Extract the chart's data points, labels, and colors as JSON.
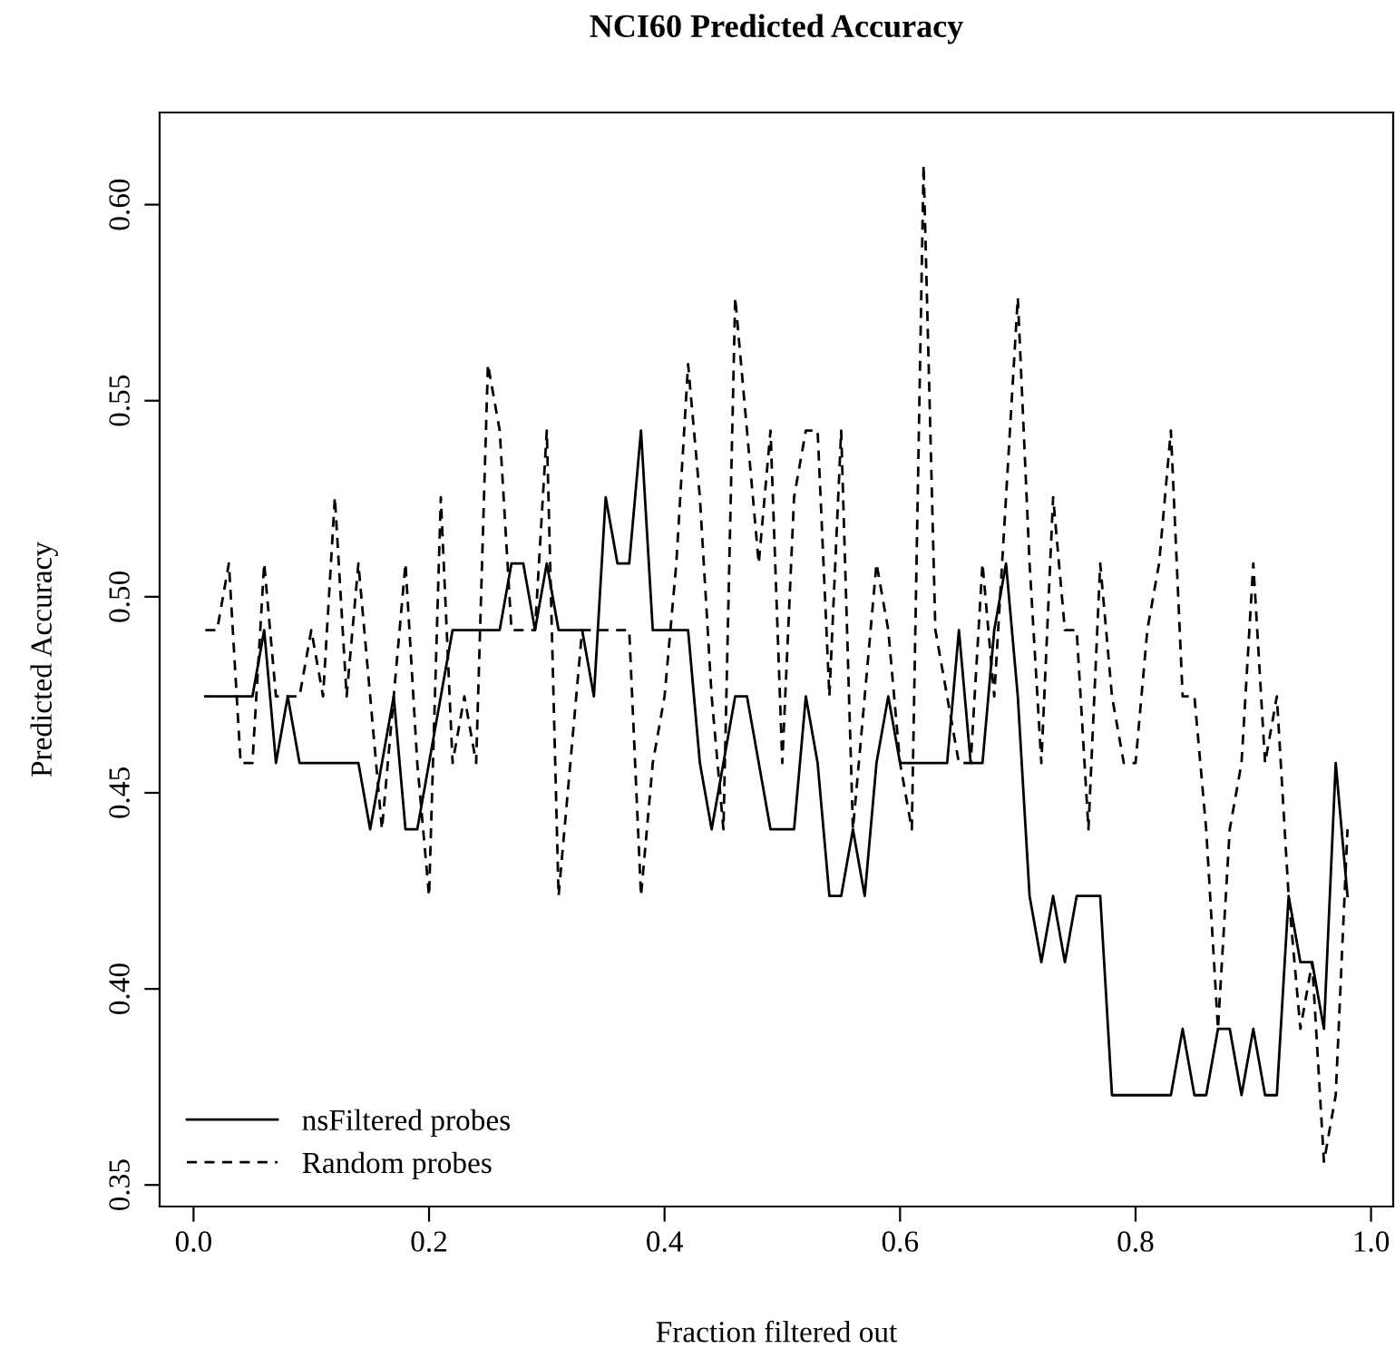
{
  "chart_data": {
    "type": "line",
    "title": "NCI60 Predicted Accuracy",
    "xlabel": "Fraction filtered out",
    "ylabel": "Predicted Accuracy",
    "x": [
      0.01,
      0.02,
      0.03,
      0.04,
      0.05,
      0.06,
      0.07,
      0.08,
      0.09,
      0.1,
      0.11,
      0.12,
      0.13,
      0.14,
      0.15,
      0.16,
      0.17,
      0.18,
      0.19,
      0.2,
      0.21,
      0.22,
      0.23,
      0.24,
      0.25,
      0.26,
      0.27,
      0.28,
      0.29,
      0.3,
      0.31,
      0.32,
      0.33,
      0.34,
      0.35,
      0.36,
      0.37,
      0.38,
      0.39,
      0.4,
      0.41,
      0.42,
      0.43,
      0.44,
      0.45,
      0.46,
      0.47,
      0.48,
      0.49,
      0.5,
      0.51,
      0.52,
      0.53,
      0.54,
      0.55,
      0.56,
      0.57,
      0.58,
      0.59,
      0.6,
      0.61,
      0.62,
      0.63,
      0.64,
      0.65,
      0.66,
      0.67,
      0.68,
      0.69,
      0.7,
      0.71,
      0.72,
      0.73,
      0.74,
      0.75,
      0.76,
      0.77,
      0.78,
      0.79,
      0.8,
      0.81,
      0.82,
      0.83,
      0.84,
      0.85,
      0.86,
      0.87,
      0.88,
      0.89,
      0.9,
      0.91,
      0.92,
      0.93,
      0.94,
      0.95,
      0.96,
      0.97,
      0.98
    ],
    "series": [
      {
        "name": "nsFiltered probes",
        "color": "#000000",
        "line_style": "solid",
        "values": [
          0.4746,
          0.4746,
          0.4746,
          0.4746,
          0.4746,
          0.4915,
          0.4576,
          0.4746,
          0.4576,
          0.4576,
          0.4576,
          0.4576,
          0.4576,
          0.4576,
          0.4407,
          0.4576,
          0.4746,
          0.4407,
          0.4407,
          0.4576,
          0.4746,
          0.4915,
          0.4915,
          0.4915,
          0.4915,
          0.4915,
          0.5085,
          0.5085,
          0.4915,
          0.5085,
          0.4915,
          0.4915,
          0.4915,
          0.4746,
          0.5254,
          0.5085,
          0.5085,
          0.5424,
          0.4915,
          0.4915,
          0.4915,
          0.4915,
          0.4576,
          0.4407,
          0.4576,
          0.4746,
          0.4746,
          0.4576,
          0.4407,
          0.4407,
          0.4407,
          0.4746,
          0.4576,
          0.4237,
          0.4237,
          0.4407,
          0.4237,
          0.4576,
          0.4746,
          0.4576,
          0.4576,
          0.4576,
          0.4576,
          0.4576,
          0.4915,
          0.4576,
          0.4576,
          0.4915,
          0.5085,
          0.4746,
          0.4237,
          0.4068,
          0.4237,
          0.4068,
          0.4237,
          0.4237,
          0.4237,
          0.3729,
          0.3729,
          0.3729,
          0.3729,
          0.3729,
          0.3729,
          0.3898,
          0.3729,
          0.3729,
          0.3898,
          0.3898,
          0.3729,
          0.3898,
          0.3729,
          0.3729,
          0.4237,
          0.4068,
          0.4068,
          0.3898,
          0.4576,
          0.4237
        ]
      },
      {
        "name": "Random probes",
        "color": "#000000",
        "line_style": "dashed",
        "values": [
          0.4915,
          0.4915,
          0.5085,
          0.4576,
          0.4576,
          0.5085,
          0.4746,
          0.4746,
          0.4746,
          0.4915,
          0.4746,
          0.5254,
          0.4746,
          0.5085,
          0.4746,
          0.4407,
          0.4746,
          0.5085,
          0.4576,
          0.4237,
          0.5254,
          0.4576,
          0.4746,
          0.4576,
          0.5593,
          0.5424,
          0.4915,
          0.4915,
          0.4915,
          0.5424,
          0.4237,
          0.4576,
          0.4915,
          0.4915,
          0.4915,
          0.4915,
          0.4915,
          0.4237,
          0.4576,
          0.4746,
          0.5085,
          0.5593,
          0.5254,
          0.4746,
          0.4407,
          0.5763,
          0.5424,
          0.5085,
          0.5424,
          0.4576,
          0.5254,
          0.5424,
          0.5424,
          0.4746,
          0.5424,
          0.4407,
          0.4746,
          0.5085,
          0.4915,
          0.4576,
          0.4407,
          0.6102,
          0.4915,
          0.4746,
          0.4576,
          0.4576,
          0.5085,
          0.4746,
          0.5254,
          0.5763,
          0.5085,
          0.4576,
          0.5254,
          0.4915,
          0.4915,
          0.4407,
          0.5085,
          0.4746,
          0.4576,
          0.4576,
          0.4915,
          0.5085,
          0.5424,
          0.4746,
          0.4746,
          0.4407,
          0.3898,
          0.4407,
          0.4576,
          0.5085,
          0.4576,
          0.4746,
          0.4237,
          0.3898,
          0.4068,
          0.3559,
          0.3729,
          0.4407
        ]
      }
    ],
    "xlim": [
      -0.0288,
      1.0188
    ],
    "ylim": [
      0.3445,
      0.6235
    ],
    "xticks": [
      {
        "value": 0.0,
        "label": "0.0"
      },
      0.2,
      0.4,
      0.6,
      0.8,
      {
        "value": 1.0,
        "label": "1.0"
      }
    ],
    "yticks": [
      0.35,
      {
        "value": 0.4,
        "label": "0.40"
      },
      0.45,
      {
        "value": 0.5,
        "label": "0.50"
      },
      0.55,
      {
        "value": 0.6,
        "label": "0.60"
      }
    ],
    "grid": false,
    "legend": "bottom left",
    "marker": "none"
  }
}
